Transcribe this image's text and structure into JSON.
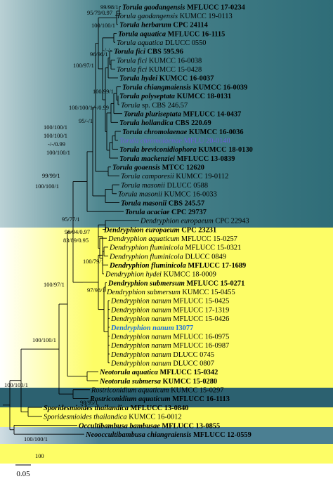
{
  "colors": {
    "torula_band": "#2f6d78",
    "dendryphion_band": "#fdfd66",
    "neotorula_band": "#2c6170",
    "rostriconidium_band": "#fdfd66",
    "sporidesmioides_band": "#4b7f92",
    "outgroup_band": "#fdfd66",
    "highlight_purple": "#6b5bd6",
    "highlight_blue": "#1f6fd6",
    "branch": "#000000"
  },
  "taxa": [
    {
      "name": "Torula gaodangensis",
      "strain": "MFLUCC 17-0234",
      "bold": true
    },
    {
      "name": "Torula gaodangensis",
      "strain": "KUMCC 19-0113",
      "bold": false
    },
    {
      "name": "Torula herbarum",
      "strain": "CPC 24114",
      "bold": true
    },
    {
      "name": "Torula aquatica",
      "strain": "MFLUCC 16-1115",
      "bold": true
    },
    {
      "name": "Torula aquatica",
      "strain": "DLUCC 0550",
      "bold": false
    },
    {
      "name": "Torula fici",
      "strain": "CBS 595.96",
      "bold": true
    },
    {
      "name": "Torula fici",
      "strain": "KUMCC 16-0038",
      "bold": false
    },
    {
      "name": "Torula fici",
      "strain": "KUMCC 15-0428",
      "bold": false
    },
    {
      "name": "Torula hydei",
      "strain": "KUMCC 16-0037",
      "bold": true
    },
    {
      "name": "Torula chiangmaiensis",
      "strain": "KUMCC 16-0039",
      "bold": true
    },
    {
      "name": "Torula polyseptata",
      "strain": "KUMCC 18-0131",
      "bold": true
    },
    {
      "name": "Torula",
      "strain": "sp. CBS 246.57",
      "bold": false
    },
    {
      "name": "Torula pluriseptata",
      "strain": "MFLUCC 14-0437",
      "bold": true
    },
    {
      "name": "Torula hollandica",
      "strain": "CBS 220.69",
      "bold": true
    },
    {
      "name": "Torula chromolaenae",
      "strain": "KUMCC 16-0036",
      "bold": true
    },
    {
      "name": "Torula chromolaenae",
      "strain": "MFLU 20-0140",
      "bold": false,
      "highlight": "purple"
    },
    {
      "name": "Torula breviconidiophora",
      "strain": "KUMCC 18-0130",
      "bold": true
    },
    {
      "name": "Torula mackenziei",
      "strain": "MFLUCC 13-0839",
      "bold": true
    },
    {
      "name": "Torula goaensis",
      "strain": "MTCC 12620",
      "bold": true
    },
    {
      "name": "Torula camporesii",
      "strain": "KUMCC 19-0112",
      "bold": false
    },
    {
      "name": "Torula masonii",
      "strain": "DLUCC 0588",
      "bold": false
    },
    {
      "name": "Torula masonii",
      "strain": "KUMCC 16-0033",
      "bold": false
    },
    {
      "name": "Torula masonii",
      "strain": "CBS 245.57",
      "bold": true
    },
    {
      "name": "Torula acaciae",
      "strain": "CPC 29737",
      "bold": true
    },
    {
      "name": "Dendryphion europaeum",
      "strain": "CPC 22943",
      "bold": false
    },
    {
      "name": "Dendryphion europaeum",
      "strain": "CPC 23231",
      "bold": true
    },
    {
      "name": "Dendryphion aquaticum",
      "strain": "MFLUCC 15-0257",
      "bold": false
    },
    {
      "name": "Dendryphion fluminicola",
      "strain": "MFLUCC 15-0321",
      "bold": false
    },
    {
      "name": "Dendryphion fluminicola",
      "strain": "DLUCC 0849",
      "bold": false
    },
    {
      "name": "Dendryphion fluminicola",
      "strain": "MFLUCC 17-1689",
      "bold": true
    },
    {
      "name": "Dendryphion hydei",
      "strain": "KUMCC 18-0009",
      "bold": false
    },
    {
      "name": "Dendryphion submersum",
      "strain": "MFLUCC 15-0271",
      "bold": true
    },
    {
      "name": "Dendryphion submersum",
      "strain": "KUMCC 15-0455",
      "bold": false
    },
    {
      "name": "Dendryphion nanum",
      "strain": "MFLUCC 15-0425",
      "bold": false
    },
    {
      "name": "Dendryphion nanum",
      "strain": "MFLUCC 17-1319",
      "bold": false
    },
    {
      "name": "Dendryphion nanum",
      "strain": "MFLUCC 15-0426",
      "bold": false
    },
    {
      "name": "Dendryphion nanum",
      "strain": "I3077",
      "bold": true,
      "highlight": "blue"
    },
    {
      "name": "Dendryphion nanum",
      "strain": "MFLUCC 16-0975",
      "bold": false
    },
    {
      "name": "Dendryphion nanum",
      "strain": "MFLUCC 16-0987",
      "bold": false
    },
    {
      "name": "Dendryphion nanum",
      "strain": "DLUCC 0745",
      "bold": false
    },
    {
      "name": "Dendryphion nanum",
      "strain": "DLUCC 0807",
      "bold": false
    },
    {
      "name": "Neotorula aquatica",
      "strain": "MFLUCC 15-0342",
      "bold": true
    },
    {
      "name": "Neotorula submersa",
      "strain": "KUMCC 15-0280",
      "bold": true
    },
    {
      "name": "Rostriconidium aquaticum",
      "strain": "KUMCC 15-0297",
      "bold": false
    },
    {
      "name": "Rostriconidium aquaticum",
      "strain": "MFLUCC 16-1113",
      "bold": true
    },
    {
      "name": "Sporidesmioides thailandica",
      "strain": "MFLUCC 13-0840",
      "bold": true
    },
    {
      "name": "Sporidesmioides thailandica",
      "strain": "KUMCC 16-0012",
      "bold": false
    },
    {
      "name": "Occultibambusa bambusae",
      "strain": "MFLUCC 13-0855",
      "bold": true
    },
    {
      "name": "Neooccultibambusa chiangraiensis",
      "strain": "MFLUCC 12-0559",
      "bold": true
    }
  ],
  "support_values": [
    "99/98/1",
    "95/79/0.97",
    "100/100/1",
    "96/96/1",
    "-/-/-",
    "100/97/1",
    "100/99/1",
    "-/-/0.99",
    "100/100/1",
    "95/-/1",
    "100/100/1",
    "100/100/1",
    "-/-/0.99",
    "100/100/1",
    "99/99/1",
    "100/100/1",
    "95/77/1",
    "98/94/0.97",
    "83/89/0.95",
    "100/79/1",
    "100/97/1",
    "97/98/1",
    "100/100/1",
    "98/95/1",
    "100/100/1",
    "100/100/1",
    "100"
  ],
  "scale_bar": {
    "label": "0.05"
  }
}
